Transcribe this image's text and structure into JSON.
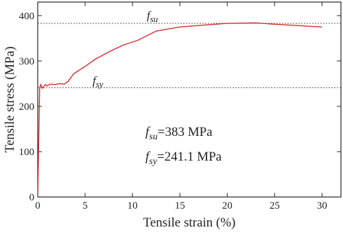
{
  "chart_data": {
    "type": "line",
    "x_label": "Tensile strain (%)",
    "y_label": "Tensile stress (MPa)",
    "x": [
      0,
      0.2,
      0.3,
      0.5,
      0.8,
      1.0,
      1.3,
      1.8,
      2.3,
      2.8,
      3.2,
      3.8,
      5,
      6,
      7.5,
      9,
      10.5,
      12.5,
      15,
      18,
      20,
      23,
      25,
      27.5,
      30
    ],
    "series": [
      {
        "color": "#d42a2a",
        "values": [
          0,
          240,
          248,
          240,
          248,
          245,
          249,
          248,
          250,
          249,
          255,
          272,
          288,
          303,
          320,
          335,
          345,
          366,
          375,
          380,
          383,
          384,
          381,
          378,
          375
        ]
      }
    ],
    "xlim": [
      0,
      32
    ],
    "ylim": [
      0,
      430
    ],
    "xticks": [
      0,
      5,
      10,
      15,
      20,
      25,
      30
    ],
    "yticks": [
      0,
      100,
      200,
      300,
      400
    ],
    "reference_lines": [
      {
        "value": 383,
        "symbol": "f",
        "subscript": "su"
      },
      {
        "value": 241.1,
        "symbol": "f",
        "subscript": "sy"
      }
    ],
    "annotations": [
      {
        "symbol": "f",
        "subscript": "su",
        "text": "=383 MPa"
      },
      {
        "symbol": "f",
        "subscript": "sy",
        "text": "=241.1 MPa"
      }
    ]
  }
}
